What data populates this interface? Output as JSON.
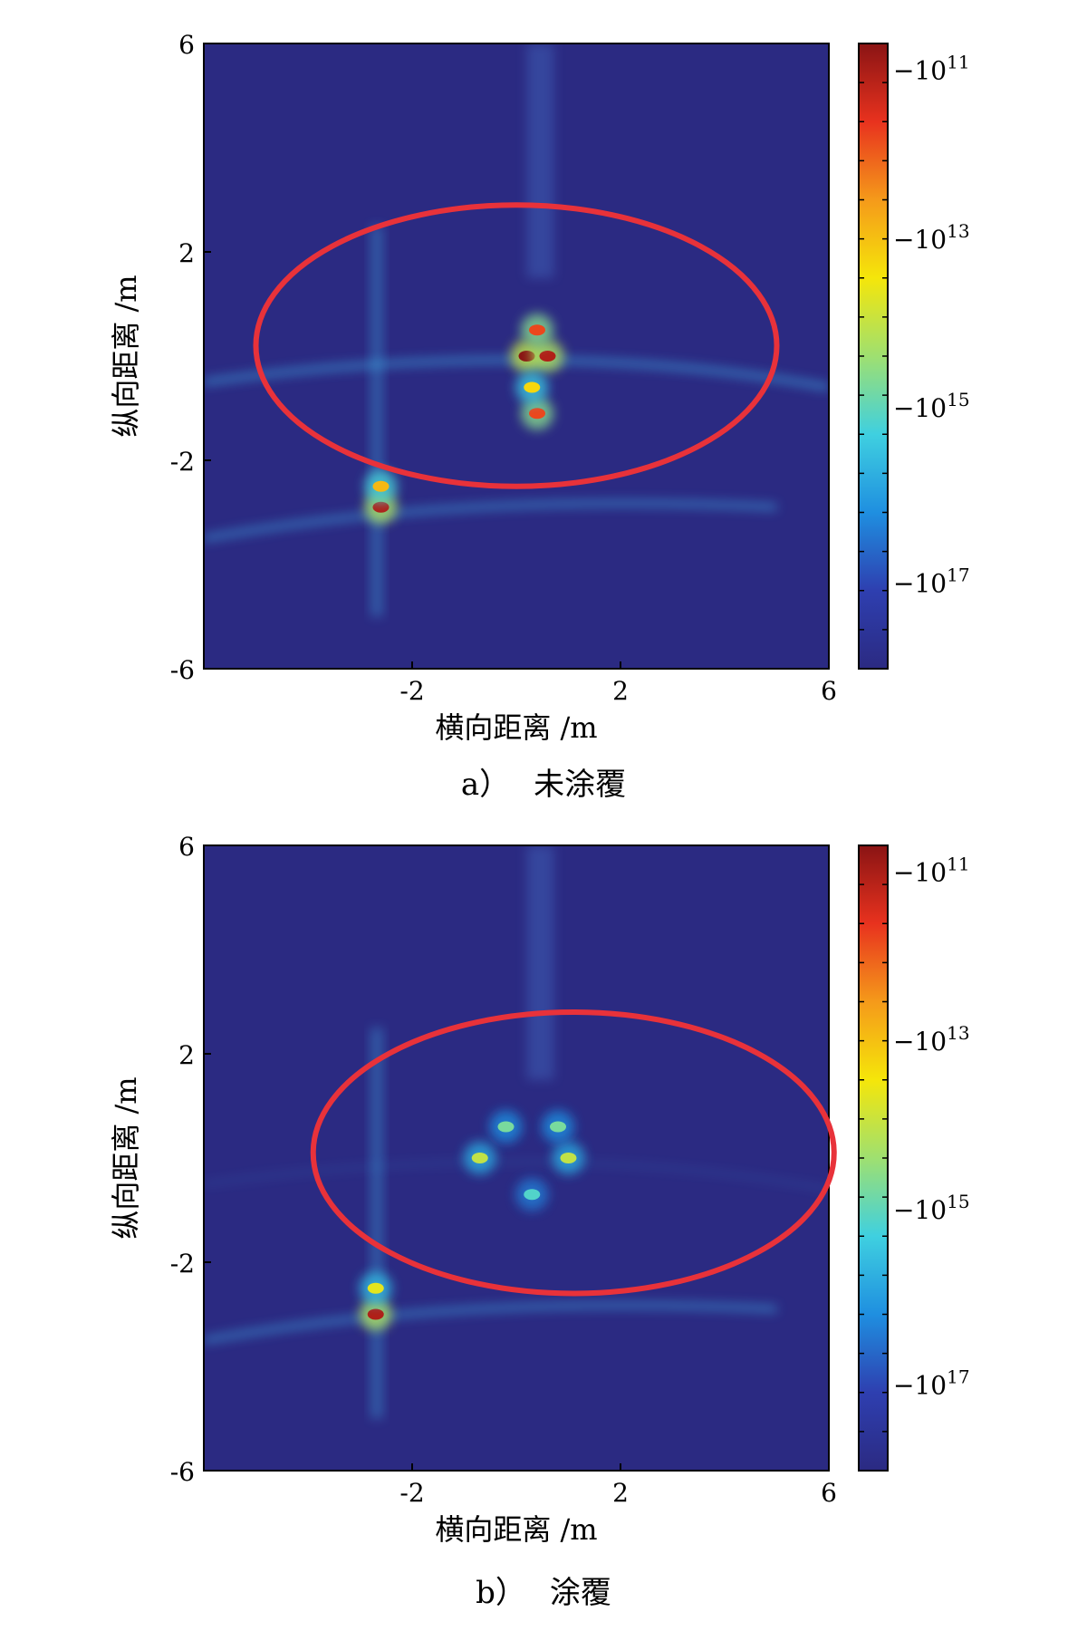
{
  "colors": {
    "background": "#2b2a82",
    "highlight_ring": "#e8323a",
    "colormap": [
      "#2b2a82",
      "#2e3fb0",
      "#1f8fe0",
      "#3fd0e0",
      "#9fe070",
      "#f5e60a",
      "#f59a1a",
      "#e8321e",
      "#8a1414"
    ]
  },
  "chart_data": [
    {
      "type": "heatmap",
      "panel_label": "a）",
      "title": "未涂覆",
      "xlabel": "横向距离 /m",
      "ylabel": "纵向距离 /m",
      "xlim": [
        -6,
        6
      ],
      "ylim": [
        -6,
        6
      ],
      "x_ticks": [
        -2,
        2,
        6
      ],
      "y_ticks": [
        -6,
        -2,
        2,
        6
      ],
      "x_tick_labels": [
        "-2",
        "2",
        "6"
      ],
      "y_tick_labels": [
        "-6",
        "-2",
        "2",
        "6"
      ],
      "colorbar": {
        "scale": "log",
        "tick_labels": [
          {
            "base": "−10",
            "exp": "11",
            "level": 0.96
          },
          {
            "base": "−10",
            "exp": "13",
            "level": 0.69
          },
          {
            "base": "−10",
            "exp": "15",
            "level": 0.42
          },
          {
            "base": "−10",
            "exp": "17",
            "level": 0.14
          }
        ]
      },
      "hotspots": [
        {
          "x": 0.2,
          "y": 0.0,
          "level": 1.0
        },
        {
          "x": 0.6,
          "y": 0.0,
          "level": 0.95
        },
        {
          "x": 0.4,
          "y": 0.5,
          "level": 0.85
        },
        {
          "x": 0.4,
          "y": -1.1,
          "level": 0.85
        },
        {
          "x": 0.3,
          "y": -0.6,
          "level": 0.65
        },
        {
          "x": -2.6,
          "y": -2.9,
          "level": 0.95
        },
        {
          "x": -2.6,
          "y": -2.5,
          "level": 0.7
        }
      ],
      "highlight_ellipse": {
        "cx": 0.0,
        "cy": 0.2,
        "rx": 5.0,
        "ry": 2.7
      }
    },
    {
      "type": "heatmap",
      "panel_label": "b）",
      "title": "涂覆",
      "xlabel": "横向距离 /m",
      "ylabel": "纵向距离 /m",
      "xlim": [
        -6,
        6
      ],
      "ylim": [
        -6,
        6
      ],
      "x_ticks": [
        -2,
        2,
        6
      ],
      "y_ticks": [
        -6,
        -2,
        2,
        6
      ],
      "x_tick_labels": [
        "-2",
        "2",
        "6"
      ],
      "y_tick_labels": [
        "-6",
        "-2",
        "2",
        "6"
      ],
      "colorbar": {
        "scale": "log",
        "tick_labels": [
          {
            "base": "−10",
            "exp": "11",
            "level": 0.96
          },
          {
            "base": "−10",
            "exp": "13",
            "level": 0.69
          },
          {
            "base": "−10",
            "exp": "15",
            "level": 0.42
          },
          {
            "base": "−10",
            "exp": "17",
            "level": 0.14
          }
        ]
      },
      "hotspots": [
        {
          "x": -0.7,
          "y": 0.0,
          "level": 0.55
        },
        {
          "x": 1.0,
          "y": 0.0,
          "level": 0.55
        },
        {
          "x": -0.2,
          "y": 0.6,
          "level": 0.45
        },
        {
          "x": 0.8,
          "y": 0.6,
          "level": 0.45
        },
        {
          "x": 0.3,
          "y": -0.7,
          "level": 0.4
        },
        {
          "x": -2.7,
          "y": -3.0,
          "level": 0.95
        },
        {
          "x": -2.7,
          "y": -2.5,
          "level": 0.6
        }
      ],
      "highlight_ellipse": {
        "cx": 1.1,
        "cy": 0.1,
        "rx": 5.0,
        "ry": 2.7
      }
    }
  ]
}
